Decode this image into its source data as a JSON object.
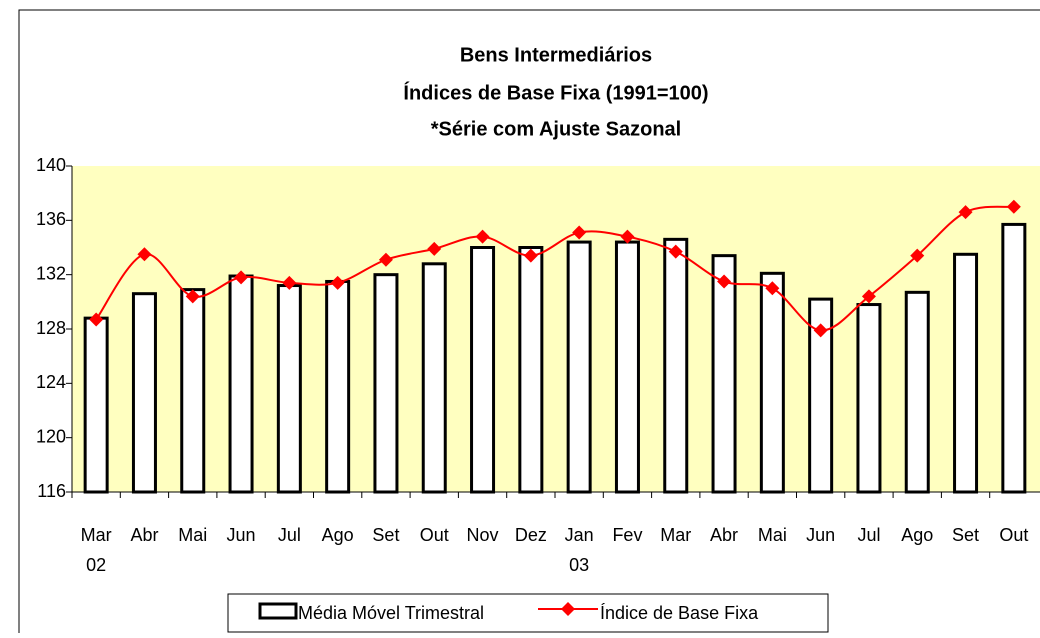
{
  "chart_data": {
    "type": "bar-line",
    "title": [
      "Bens Intermediários",
      "Índices de Base Fixa (1991=100)",
      "*Série com Ajuste Sazonal"
    ],
    "categories": [
      "Mar",
      "Abr",
      "Mai",
      "Jun",
      "Jul",
      "Ago",
      "Set",
      "Out",
      "Nov",
      "Dez",
      "Jan",
      "Fev",
      "Mar",
      "Abr",
      "Mai",
      "Jun",
      "Jul",
      "Ago",
      "Set",
      "Out"
    ],
    "category_years": [
      "02",
      null,
      null,
      null,
      null,
      null,
      null,
      null,
      null,
      null,
      "03",
      null,
      null,
      null,
      null,
      null,
      null,
      null,
      null,
      null
    ],
    "series": [
      {
        "name": "Média Móvel Trimestral",
        "type": "bar",
        "color": "#ffffff",
        "values": [
          128.8,
          130.6,
          130.9,
          131.9,
          131.2,
          131.5,
          132.0,
          132.8,
          134.0,
          134.0,
          134.4,
          134.4,
          134.6,
          133.4,
          132.1,
          130.2,
          129.8,
          130.7,
          133.5,
          135.7
        ]
      },
      {
        "name": "Índice de Base Fixa",
        "type": "line",
        "color": "#ff0000",
        "values": [
          128.7,
          133.5,
          130.4,
          131.8,
          131.4,
          131.4,
          133.1,
          133.9,
          134.8,
          133.4,
          135.1,
          134.8,
          133.7,
          131.5,
          131.0,
          127.9,
          130.4,
          133.4,
          136.6,
          137.0
        ]
      }
    ],
    "ylim": [
      116,
      140
    ],
    "yticks": [
      116,
      120,
      124,
      128,
      132,
      136,
      140
    ],
    "background": "#ffffc0"
  }
}
